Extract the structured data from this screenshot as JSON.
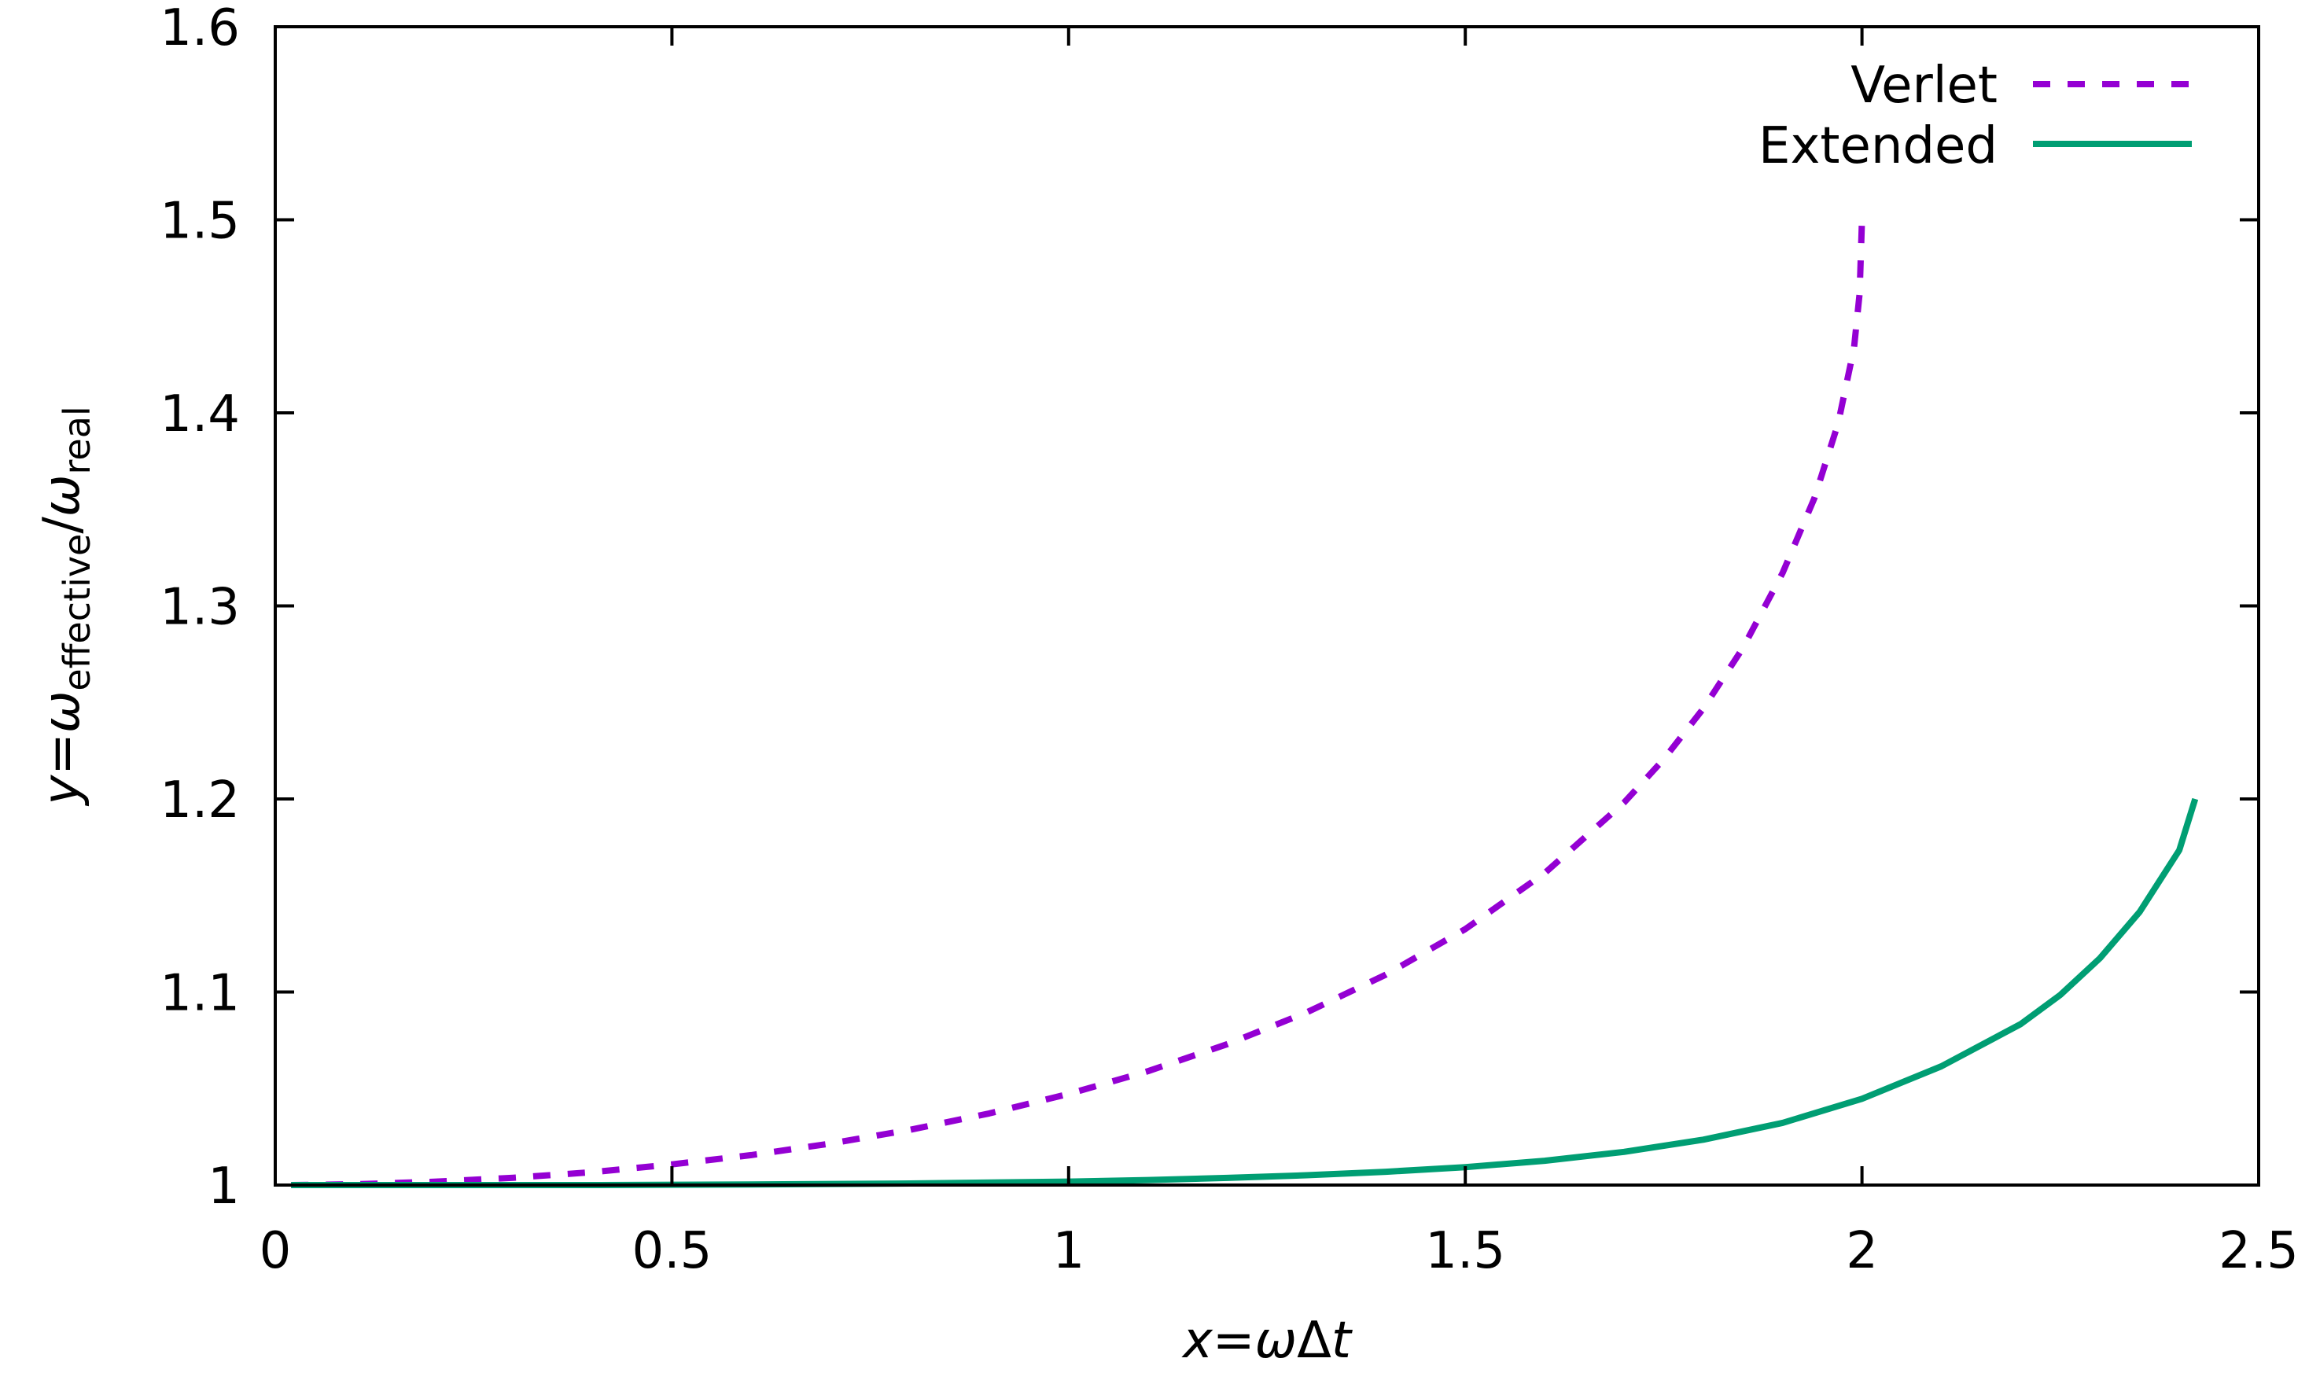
{
  "chart_data": {
    "type": "line",
    "title": "",
    "xlabel": {
      "var": "x",
      "eq": "=",
      "omega": "ω",
      "delta": "Δ",
      "t": "t"
    },
    "ylabel": {
      "var": "y",
      "eq": "=",
      "omega1": "ω",
      "sub1": "effective",
      "slash": "/",
      "omega2": "ω",
      "sub2": "real"
    },
    "xlim": [
      0,
      2.5
    ],
    "ylim": [
      1,
      1.6
    ],
    "x_ticks": [
      "0",
      "0.5",
      "1",
      "1.5",
      "2",
      "2.5"
    ],
    "y_ticks": [
      "1",
      "1.1",
      "1.2",
      "1.3",
      "1.4",
      "1.5",
      "1.6"
    ],
    "grid": false,
    "legend_position": "top-right",
    "series": [
      {
        "name": "Verlet",
        "color": "#9400d3",
        "style": "dashed",
        "points": [
          [
            0.02,
            1.0
          ],
          [
            0.1,
            1.0004
          ],
          [
            0.2,
            1.0017
          ],
          [
            0.3,
            1.0038
          ],
          [
            0.4,
            1.0067
          ],
          [
            0.5,
            1.0107
          ],
          [
            0.6,
            1.0155
          ],
          [
            0.7,
            1.0215
          ],
          [
            0.8,
            1.0286
          ],
          [
            0.9,
            1.0371
          ],
          [
            1.0,
            1.0472
          ],
          [
            1.1,
            1.059
          ],
          [
            1.2,
            1.073
          ],
          [
            1.3,
            1.0894
          ],
          [
            1.4,
            1.109
          ],
          [
            1.5,
            1.1326
          ],
          [
            1.6,
            1.1616
          ],
          [
            1.7,
            1.1981
          ],
          [
            1.75,
            1.2205
          ],
          [
            1.8,
            1.2468
          ],
          [
            1.85,
            1.2783
          ],
          [
            1.9,
            1.3171
          ],
          [
            1.94,
            1.3558
          ],
          [
            1.97,
            1.3946
          ],
          [
            1.99,
            1.4337
          ],
          [
            1.997,
            1.4618
          ],
          [
            2.0,
            1.5
          ]
        ]
      },
      {
        "name": "Extended",
        "color": "#009e73",
        "style": "solid",
        "points": [
          [
            0.02,
            1.0
          ],
          [
            0.4,
            1.0
          ],
          [
            0.6,
            1.0003
          ],
          [
            0.8,
            1.0008
          ],
          [
            1.0,
            1.0018
          ],
          [
            1.1,
            1.0026
          ],
          [
            1.2,
            1.0037
          ],
          [
            1.3,
            1.0051
          ],
          [
            1.4,
            1.0069
          ],
          [
            1.5,
            1.0093
          ],
          [
            1.6,
            1.0126
          ],
          [
            1.7,
            1.0172
          ],
          [
            1.8,
            1.0235
          ],
          [
            1.9,
            1.0322
          ],
          [
            2.0,
            1.0447
          ],
          [
            2.1,
            1.0615
          ],
          [
            2.2,
            1.0834
          ],
          [
            2.25,
            1.0985
          ],
          [
            2.3,
            1.1175
          ],
          [
            2.35,
            1.1415
          ],
          [
            2.4,
            1.1735
          ],
          [
            2.42,
            1.2
          ]
        ]
      }
    ]
  }
}
